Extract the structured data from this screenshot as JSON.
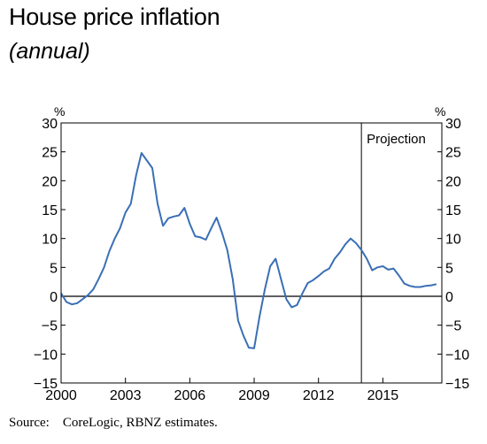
{
  "chart_data": {
    "type": "line",
    "title": "House price inflation",
    "subtitle": "(annual)",
    "source": "Source:    CoreLogic, RBNZ estimates.",
    "y_unit_left": "%",
    "y_unit_right": "%",
    "ylim": [
      -15,
      30
    ],
    "yticks": [
      -15,
      -10,
      -5,
      0,
      5,
      10,
      15,
      20,
      25,
      30
    ],
    "xlim": [
      2000,
      2017.75
    ],
    "xticks": [
      2000,
      2003,
      2006,
      2009,
      2012,
      2015
    ],
    "projection_start": 2014.0,
    "projection_label": "Projection",
    "line_color": "#3a6fb5",
    "grid": false,
    "series": [
      {
        "x": [
          2000.0,
          2000.25,
          2000.5,
          2000.75,
          2001.0,
          2001.25,
          2001.5,
          2001.75,
          2002.0,
          2002.25,
          2002.5,
          2002.75,
          2003.0,
          2003.25,
          2003.5,
          2003.75,
          2004.0,
          2004.25,
          2004.5,
          2004.75,
          2005.0,
          2005.25,
          2005.5,
          2005.75,
          2006.0,
          2006.25,
          2006.5,
          2006.75,
          2007.0,
          2007.25,
          2007.5,
          2007.75,
          2008.0,
          2008.25,
          2008.5,
          2008.75,
          2009.0,
          2009.25,
          2009.5,
          2009.75,
          2010.0,
          2010.25,
          2010.5,
          2010.75,
          2011.0,
          2011.25,
          2011.5,
          2011.75,
          2012.0,
          2012.25,
          2012.5,
          2012.75,
          2013.0,
          2013.25,
          2013.5,
          2013.75,
          2014.0,
          2014.25,
          2014.5,
          2014.75,
          2015.0,
          2015.25,
          2015.5,
          2015.75,
          2016.0,
          2016.25,
          2016.5,
          2016.75,
          2017.0,
          2017.25,
          2017.5
        ],
        "values": [
          0.5,
          -1.0,
          -1.4,
          -1.2,
          -0.5,
          0.2,
          1.2,
          3.0,
          5.0,
          7.8,
          10.0,
          11.8,
          14.5,
          16.0,
          21.0,
          24.8,
          23.5,
          22.2,
          16.0,
          12.2,
          13.5,
          13.8,
          14.0,
          15.3,
          12.5,
          10.4,
          10.2,
          9.8,
          11.8,
          13.6,
          11.0,
          8.0,
          3.0,
          -4.2,
          -6.8,
          -8.9,
          -9.0,
          -3.5,
          1.2,
          5.2,
          6.5,
          3.0,
          -0.5,
          -1.9,
          -1.5,
          0.5,
          2.3,
          2.8,
          3.5,
          4.3,
          4.8,
          6.5,
          7.6,
          9.0,
          10.0,
          9.2,
          8.0,
          6.5,
          4.5,
          5.0,
          5.2,
          4.6,
          4.8,
          3.6,
          2.2,
          1.8,
          1.6,
          1.6,
          1.8,
          1.9,
          2.1
        ]
      }
    ]
  }
}
